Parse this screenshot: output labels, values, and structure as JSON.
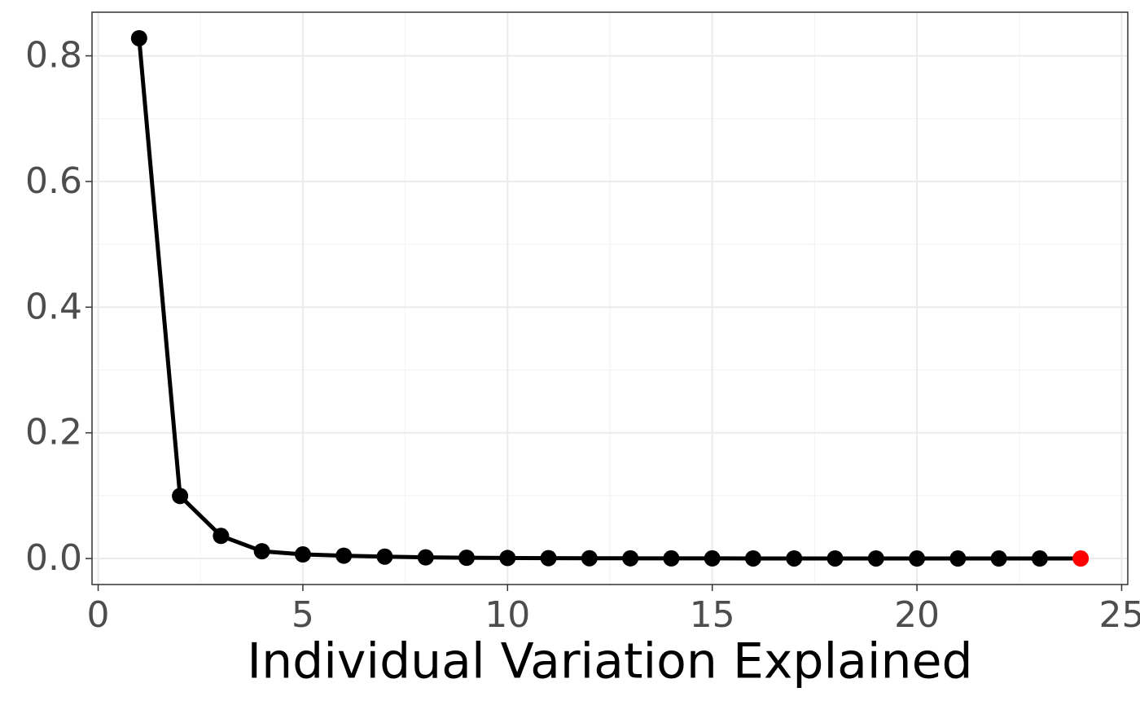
{
  "chart_data": {
    "type": "line",
    "x_label": "Individual Variation Explained",
    "x": [
      1,
      2,
      3,
      4,
      5,
      6,
      7,
      8,
      9,
      10,
      11,
      12,
      13,
      14,
      15,
      16,
      17,
      18,
      19,
      20,
      21,
      22,
      23,
      24
    ],
    "series": [
      {
        "color": "#000000",
        "values": [
          0.828,
          0.0995,
          0.036,
          0.0116,
          0.0065,
          0.0045,
          0.003,
          0.0018,
          0.0012,
          0.0008,
          0.0006,
          0.0004,
          0.0003,
          0.0002,
          0.0002,
          0.0001,
          0.0001,
          0.0001,
          0.0001,
          0,
          0,
          0,
          0,
          0
        ],
        "point_colors": [
          "#000000",
          "#000000",
          "#000000",
          "#000000",
          "#000000",
          "#000000",
          "#000000",
          "#000000",
          "#000000",
          "#000000",
          "#000000",
          "#000000",
          "#000000",
          "#000000",
          "#000000",
          "#000000",
          "#000000",
          "#000000",
          "#000000",
          "#000000",
          "#000000",
          "#000000",
          "#000000",
          "#ff0000"
        ]
      }
    ],
    "xlim": [
      -0.15,
      25.15
    ],
    "ylim": [
      -0.0414,
      0.8694
    ],
    "xticks": [
      0,
      5,
      10,
      15,
      20,
      25
    ],
    "yticks": [
      {
        "value": 0,
        "label": "0.0"
      },
      0.2,
      0.4,
      0.6,
      0.8
    ],
    "grid": true
  }
}
